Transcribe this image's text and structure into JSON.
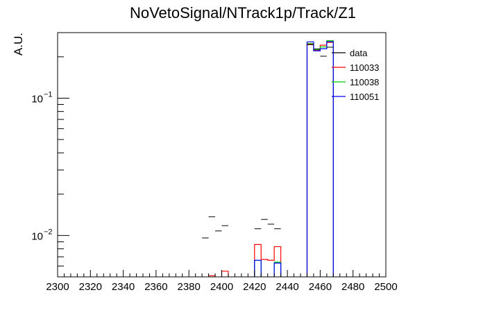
{
  "chart_data": {
    "type": "histogram-step-log",
    "title": "NoVetoSignal/NTrack1p/Track/Z1",
    "ylabel": "A.U.",
    "xlabel": "",
    "xlim": [
      2300,
      2500
    ],
    "ylim": [
      0.005,
      0.3
    ],
    "log_y": true,
    "grid": false,
    "legend_position": "top-right",
    "x_ticks": [
      "2300",
      "2320",
      "2340",
      "2360",
      "2380",
      "2400",
      "2420",
      "2440",
      "2460",
      "2480",
      "2500"
    ],
    "y_major_ticks": [
      {
        "value": 0.01,
        "label_base": "10",
        "label_exp": "−2"
      },
      {
        "value": 0.1,
        "label_base": "10",
        "label_exp": "−1"
      }
    ],
    "bin_width": 4,
    "legend": [
      {
        "name": "data",
        "color": "#000000"
      },
      {
        "name": "110033",
        "color": "#ff0000"
      },
      {
        "name": "110038",
        "color": "#00cc00"
      },
      {
        "name": "110051",
        "color": "#0000ff"
      }
    ],
    "data_points": [
      {
        "x": 2390,
        "y": 0.0096
      },
      {
        "x": 2394,
        "y": 0.0137
      },
      {
        "x": 2398,
        "y": 0.0108
      },
      {
        "x": 2402,
        "y": 0.0118
      },
      {
        "x": 2422,
        "y": 0.0112
      },
      {
        "x": 2426,
        "y": 0.0131
      },
      {
        "x": 2430,
        "y": 0.0121
      },
      {
        "x": 2434,
        "y": 0.0112
      },
      {
        "x": 2454,
        "y": 0.245
      },
      {
        "x": 2458,
        "y": 0.228
      },
      {
        "x": 2462,
        "y": 0.202
      },
      {
        "x": 2466,
        "y": 0.235
      }
    ],
    "series": [
      {
        "name": "110033",
        "color": "#ff0000",
        "bins": [
          {
            "x0": 2392,
            "x1": 2396,
            "y": 0.0051
          },
          {
            "x0": 2400,
            "x1": 2404,
            "y": 0.0055
          },
          {
            "x0": 2420,
            "x1": 2424,
            "y": 0.0086
          },
          {
            "x0": 2424,
            "x1": 2428,
            "y": 0.0067
          },
          {
            "x0": 2428,
            "x1": 2432,
            "y": 0.0066
          },
          {
            "x0": 2432,
            "x1": 2436,
            "y": 0.0083
          },
          {
            "x0": 2452,
            "x1": 2456,
            "y": 0.248
          },
          {
            "x0": 2456,
            "x1": 2460,
            "y": 0.224
          },
          {
            "x0": 2460,
            "x1": 2464,
            "y": 0.243
          },
          {
            "x0": 2464,
            "x1": 2468,
            "y": 0.255
          }
        ]
      },
      {
        "name": "110038",
        "color": "#00cc00",
        "bins": [
          {
            "x0": 2420,
            "x1": 2424,
            "y": 0.0066
          },
          {
            "x0": 2432,
            "x1": 2436,
            "y": 0.0064
          },
          {
            "x0": 2452,
            "x1": 2456,
            "y": 0.25
          },
          {
            "x0": 2456,
            "x1": 2460,
            "y": 0.226
          },
          {
            "x0": 2460,
            "x1": 2464,
            "y": 0.236
          },
          {
            "x0": 2464,
            "x1": 2468,
            "y": 0.262
          }
        ]
      },
      {
        "name": "110051",
        "color": "#0000ff",
        "bins": [
          {
            "x0": 2420,
            "x1": 2424,
            "y": 0.0066
          },
          {
            "x0": 2432,
            "x1": 2436,
            "y": 0.0063
          },
          {
            "x0": 2452,
            "x1": 2456,
            "y": 0.257
          },
          {
            "x0": 2456,
            "x1": 2460,
            "y": 0.221
          },
          {
            "x0": 2460,
            "x1": 2464,
            "y": 0.229
          },
          {
            "x0": 2464,
            "x1": 2468,
            "y": 0.258
          }
        ]
      }
    ]
  }
}
